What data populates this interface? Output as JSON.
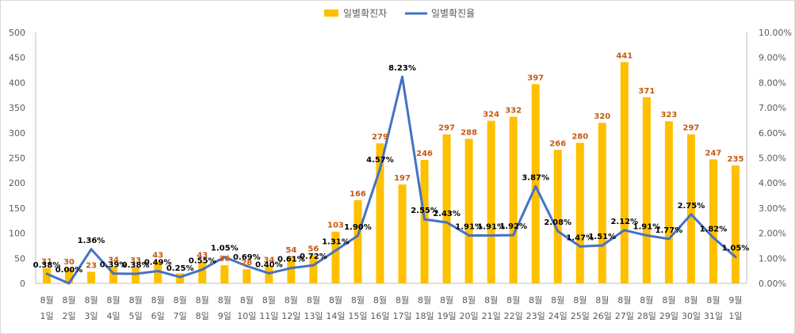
{
  "chart_data": {
    "type": "bar+line",
    "categories": [
      [
        "8월",
        "1일"
      ],
      [
        "8월",
        "2일"
      ],
      [
        "8월",
        "3일"
      ],
      [
        "8월",
        "4일"
      ],
      [
        "8월",
        "5일"
      ],
      [
        "8월",
        "6일"
      ],
      [
        "8월",
        "7일"
      ],
      [
        "8월",
        "8일"
      ],
      [
        "8월",
        "9일"
      ],
      [
        "8월",
        "10일"
      ],
      [
        "8월",
        "11일"
      ],
      [
        "8월",
        "12일"
      ],
      [
        "8월",
        "13일"
      ],
      [
        "8월",
        "14일"
      ],
      [
        "8월",
        "15일"
      ],
      [
        "8월",
        "16일"
      ],
      [
        "8월",
        "17일"
      ],
      [
        "8월",
        "18일"
      ],
      [
        "8월",
        "19일"
      ],
      [
        "8월",
        "20일"
      ],
      [
        "8월",
        "21일"
      ],
      [
        "8월",
        "22일"
      ],
      [
        "8월",
        "23일"
      ],
      [
        "8월",
        "24일"
      ],
      [
        "8월",
        "25일"
      ],
      [
        "8월",
        "26일"
      ],
      [
        "8월",
        "27일"
      ],
      [
        "8월",
        "28일"
      ],
      [
        "8월",
        "29일"
      ],
      [
        "8월",
        "30일"
      ],
      [
        "8월",
        "31일"
      ],
      [
        "9월",
        "1일"
      ]
    ],
    "series": [
      {
        "name": "일별확진자",
        "type": "bar",
        "axis": "left",
        "values": [
          31,
          30,
          23,
          34,
          33,
          43,
          20,
          43,
          36,
          28,
          34,
          54,
          56,
          103,
          166,
          279,
          197,
          246,
          297,
          288,
          324,
          332,
          397,
          266,
          280,
          320,
          441,
          371,
          323,
          297,
          247,
          235
        ],
        "labels": [
          "31",
          "30",
          "23",
          "34",
          "33",
          "43",
          "",
          "43",
          "36",
          "28",
          "34",
          "54",
          "56",
          "103",
          "166",
          "279",
          "197",
          "246",
          "297",
          "288",
          "324",
          "332",
          "397",
          "266",
          "280",
          "320",
          "441",
          "371",
          "323",
          "297",
          "247",
          "235"
        ]
      },
      {
        "name": "일별확진율",
        "type": "line",
        "axis": "right",
        "values": [
          0.38,
          0.0,
          1.36,
          0.39,
          0.38,
          0.49,
          0.25,
          0.55,
          1.05,
          0.69,
          0.4,
          0.61,
          0.72,
          1.31,
          1.9,
          4.57,
          8.23,
          2.55,
          2.43,
          1.91,
          1.91,
          1.92,
          3.87,
          2.08,
          1.47,
          1.51,
          2.12,
          1.91,
          1.77,
          2.75,
          1.82,
          1.05
        ],
        "labels": [
          "0.38%",
          "0.00%",
          "1.36%",
          "0.39%",
          "0.38%",
          "0.49%",
          "0.25%",
          "0.55%",
          "1.05%",
          "0.69%",
          "0.40%",
          "0.61%",
          "0.72%",
          "1.31%",
          "1.90%",
          "4.57%",
          "8.23%",
          "2.55%",
          "2.43%",
          "1.91%",
          "1.91%",
          "1.92%",
          "3.87%",
          "2.08%",
          "1.47%",
          "1.51%",
          "2.12%",
          "1.91%",
          "1.77%",
          "2.75%",
          "1.82%",
          "1.05%"
        ]
      }
    ],
    "y_left": {
      "min": 0,
      "max": 500,
      "ticks": [
        "0",
        "50",
        "100",
        "150",
        "200",
        "250",
        "300",
        "350",
        "400",
        "450",
        "500"
      ]
    },
    "y_right": {
      "min": 0,
      "max": 10,
      "ticks": [
        "0.00%",
        "1.00%",
        "2.00%",
        "3.00%",
        "4.00%",
        "5.00%",
        "6.00%",
        "7.00%",
        "8.00%",
        "9.00%",
        "10.00%"
      ]
    },
    "legend": {
      "position": "top-center"
    },
    "grid": false,
    "colors": {
      "bar": "#ffc000",
      "line": "#4472c4",
      "bar_label": "#c55a11",
      "line_label": "#000000",
      "axis_text": "#595959"
    }
  }
}
